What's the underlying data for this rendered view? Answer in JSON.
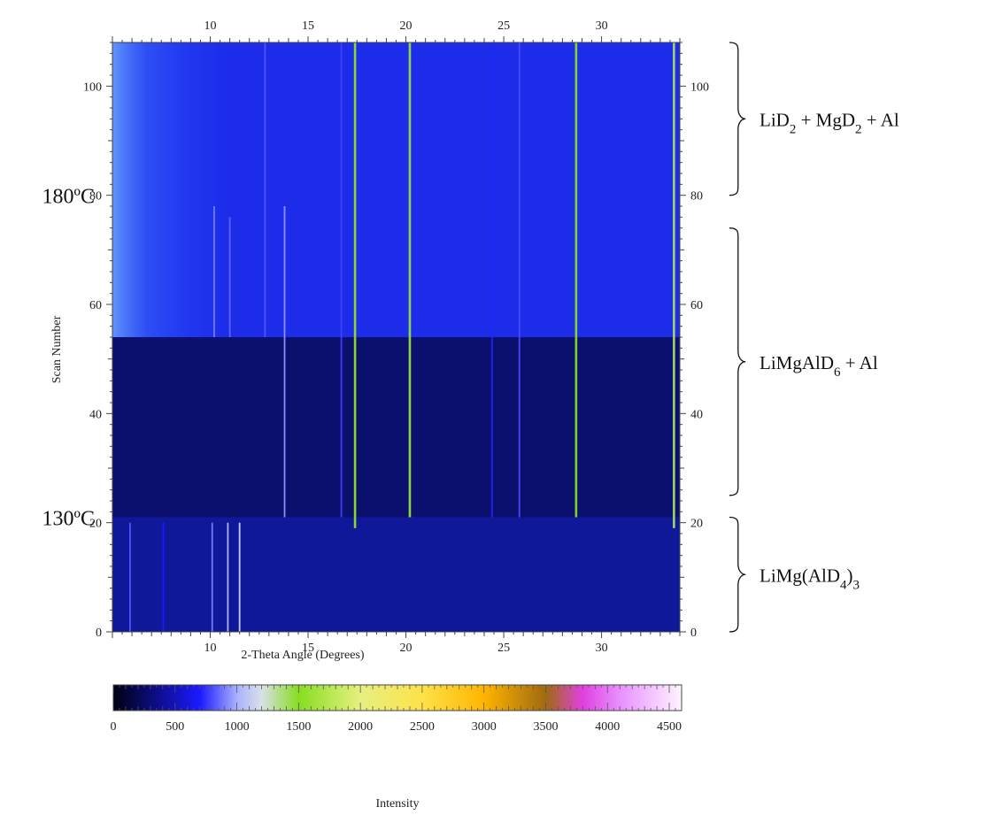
{
  "chart_data": {
    "type": "heatmap",
    "xlabel": "2-Theta Angle (Degrees)",
    "ylabel": "Scan Number",
    "xlim": [
      5,
      34
    ],
    "ylim": [
      0,
      108
    ],
    "x_ticks": [
      "10",
      "15",
      "20",
      "25",
      "30"
    ],
    "x_tick_values": [
      10,
      15,
      20,
      25,
      30
    ],
    "y_ticks": [
      "0",
      "20",
      "40",
      "60",
      "80",
      "100"
    ],
    "y_tick_values": [
      0,
      20,
      40,
      60,
      80,
      100
    ],
    "colorbar": {
      "label": "Intensity",
      "range": [
        0,
        4600
      ],
      "ticks": [
        "0",
        "500",
        "1000",
        "1500",
        "2000",
        "2500",
        "3000",
        "3500",
        "4000",
        "4500"
      ],
      "tick_values": [
        0,
        500,
        1000,
        1500,
        2000,
        2500,
        3000,
        3500,
        4000,
        4500
      ],
      "stops": [
        {
          "value": 0,
          "color": "#000010"
        },
        {
          "value": 700,
          "color": "#1a1aff"
        },
        {
          "value": 1000,
          "color": "#aab0ff"
        },
        {
          "value": 1200,
          "color": "#d8e0e8"
        },
        {
          "value": 1500,
          "color": "#88dd22"
        },
        {
          "value": 2000,
          "color": "#e6f080"
        },
        {
          "value": 2500,
          "color": "#ffe24a"
        },
        {
          "value": 3000,
          "color": "#ffb400"
        },
        {
          "value": 3500,
          "color": "#a06a10"
        },
        {
          "value": 3800,
          "color": "#e040e0"
        },
        {
          "value": 4100,
          "color": "#e890ff"
        },
        {
          "value": 4600,
          "color": "#fff4ff"
        }
      ]
    },
    "temperature_labels": [
      {
        "text": "180ºC",
        "scan": 80
      },
      {
        "text": "130ºC",
        "scan": 21
      }
    ],
    "regions": [
      {
        "label_main": "LiMg(AlD",
        "label_sub1": "4",
        "label_rest": ")",
        "label_sub2": "3",
        "label_tail": "",
        "scan_start": 0,
        "scan_end": 21
      },
      {
        "label_main": "LiMgAlD",
        "label_sub1": "6",
        "label_rest": " + Al",
        "label_sub2": "",
        "label_tail": "",
        "scan_start": 25,
        "scan_end": 74
      },
      {
        "label_main": "LiD",
        "label_sub1": "2",
        "label_rest": " + MgD",
        "label_sub2": "2",
        "label_tail": " + Al",
        "scan_start": 80,
        "scan_end": 108
      }
    ],
    "peaks": [
      {
        "two_theta": 10.1,
        "scan_start": 0,
        "scan_end": 20,
        "intensity": 900
      },
      {
        "two_theta": 10.9,
        "scan_start": 0,
        "scan_end": 20,
        "intensity": 1050
      },
      {
        "two_theta": 11.5,
        "scan_start": 0,
        "scan_end": 20,
        "intensity": 1150
      },
      {
        "two_theta": 5.9,
        "scan_start": 0,
        "scan_end": 20,
        "intensity": 820
      },
      {
        "two_theta": 7.6,
        "scan_start": 0,
        "scan_end": 20,
        "intensity": 700
      },
      {
        "two_theta": 10.2,
        "scan_start": 54,
        "scan_end": 78,
        "intensity": 900
      },
      {
        "two_theta": 11.0,
        "scan_start": 54,
        "scan_end": 76,
        "intensity": 850
      },
      {
        "two_theta": 12.8,
        "scan_start": 54,
        "scan_end": 108,
        "intensity": 820
      },
      {
        "two_theta": 13.8,
        "scan_start": 21,
        "scan_end": 78,
        "intensity": 950
      },
      {
        "two_theta": 16.7,
        "scan_start": 21,
        "scan_end": 108,
        "intensity": 780
      },
      {
        "two_theta": 17.4,
        "scan_start": 19,
        "scan_end": 108,
        "intensity": 1550
      },
      {
        "two_theta": 20.2,
        "scan_start": 21,
        "scan_end": 108,
        "intensity": 1450
      },
      {
        "two_theta": 24.4,
        "scan_start": 21,
        "scan_end": 108,
        "intensity": 720
      },
      {
        "two_theta": 25.8,
        "scan_start": 21,
        "scan_end": 108,
        "intensity": 800
      },
      {
        "two_theta": 28.7,
        "scan_start": 21,
        "scan_end": 108,
        "intensity": 1500
      },
      {
        "two_theta": 33.7,
        "scan_start": 19,
        "scan_end": 108,
        "intensity": 1400
      }
    ]
  }
}
